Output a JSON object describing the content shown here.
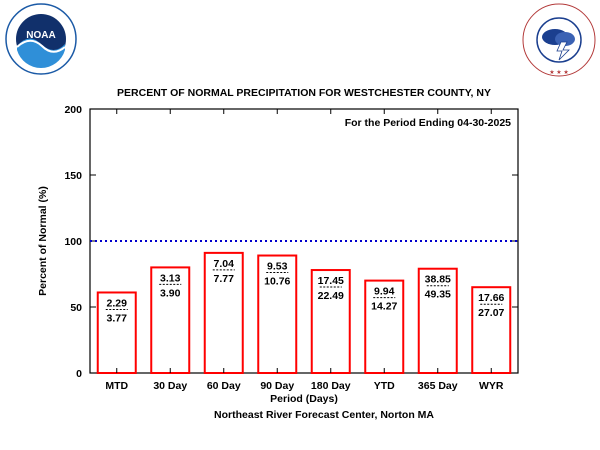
{
  "logos": {
    "left": {
      "icon": "noaa-logo",
      "text": "NOAA",
      "ring_text": "NATIONAL OCEANIC AND ATMOSPHERIC ADMINISTRATION",
      "bottom_text": "U.S. DEPARTMENT OF COMMERCE"
    },
    "right": {
      "icon": "nws-logo",
      "ring_text": "NATIONAL WEATHER SERVICE"
    }
  },
  "colors": {
    "bar_outline": "#ff0000",
    "normal_line": "#0000cc",
    "noaa_blue": "#1b5aa6",
    "noaa_navy": "#11306b"
  },
  "chart_data": {
    "type": "bar",
    "title": "PERCENT OF NORMAL PRECIPITATION FOR WESTCHESTER COUNTY, NY",
    "subtitle": "For the Period Ending 04-30-2025",
    "xlabel": "Period (Days)",
    "ylabel": "Percent of Normal (%)",
    "footer": "Northeast River Forecast Center, Norton MA",
    "ylim": [
      0,
      200
    ],
    "yticks": [
      0,
      50,
      100,
      150,
      200
    ],
    "normal_line": 100,
    "categories": [
      "MTD",
      "30 Day",
      "60 Day",
      "90 Day",
      "180 Day",
      "YTD",
      "365 Day",
      "WYR"
    ],
    "values": [
      61,
      80,
      91,
      89,
      78,
      70,
      79,
      65
    ],
    "observed": [
      "2.29",
      "3.13",
      "7.04",
      "9.53",
      "17.45",
      "9.94",
      "38.85",
      "17.66"
    ],
    "normal": [
      "3.77",
      "3.90",
      "7.77",
      "10.76",
      "22.49",
      "14.27",
      "49.35",
      "27.07"
    ],
    "grid": false,
    "legend": "none"
  }
}
